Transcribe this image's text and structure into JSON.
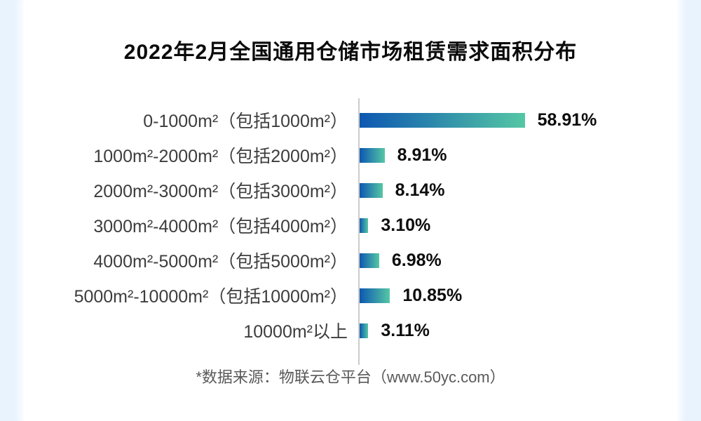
{
  "title": "2022年2月全国通用仓储市场租赁需求面积分布",
  "footer": {
    "source_note": "*数据来源：物联云仓平台（www.50yc.com）"
  },
  "colors": {
    "page_bg": "#e9f3fd",
    "panel_bg": "#ffffff",
    "bar_gradient_start": "#0d57b1",
    "bar_gradient_end": "#55c7a4",
    "axis_line": "#cccccc",
    "label_text": "#3d3d3d",
    "value_text": "#0d0d0d",
    "footer_text": "#595959"
  },
  "chart_data": {
    "type": "bar",
    "orientation": "horizontal",
    "title": "2022年2月全国通用仓储市场租赁需求面积分布",
    "categories": [
      "0-1000m²（包括1000m²）",
      "1000m²-2000m²（包括2000m²）",
      "2000m²-3000m²（包括3000m²）",
      "3000m²-4000m²（包括4000m²）",
      "4000m²-5000m²（包括5000m²）",
      "5000m²-10000m²（包括10000m²）",
      "10000m²以上"
    ],
    "values": [
      58.91,
      8.91,
      8.14,
      3.1,
      6.98,
      10.85,
      3.11
    ],
    "value_labels": [
      "58.91%",
      "8.91%",
      "8.14%",
      "3.10%",
      "6.98%",
      "10.85%",
      "3.11%"
    ],
    "xlabel": "",
    "ylabel": "",
    "xlim": [
      0,
      60
    ],
    "grid": false,
    "legend": "none",
    "source": "*数据来源：物联云仓平台（www.50yc.com）"
  }
}
